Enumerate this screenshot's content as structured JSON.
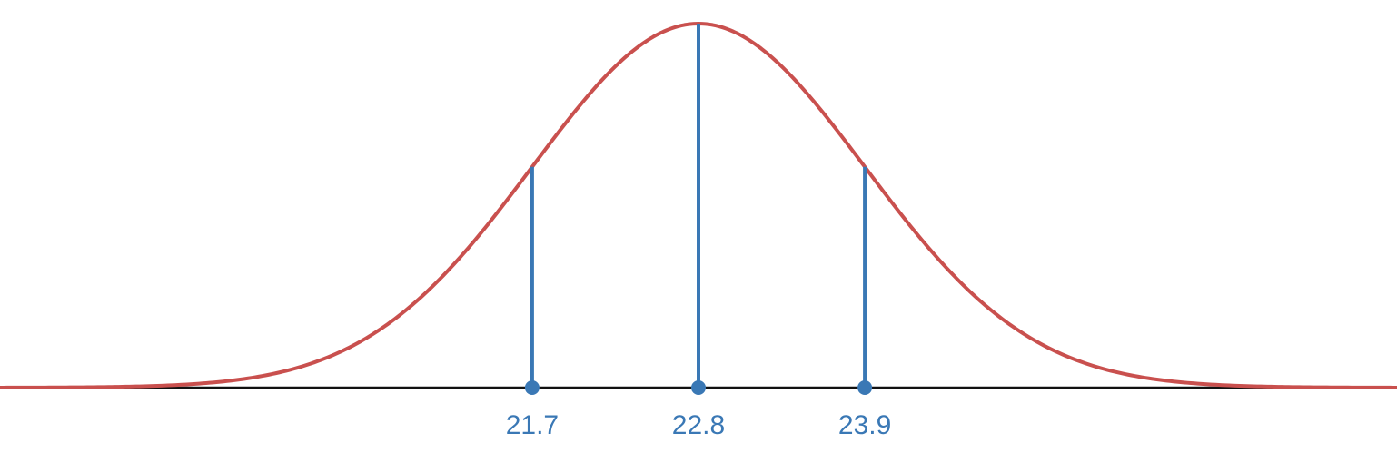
{
  "chart_data": {
    "type": "line",
    "title": "",
    "xlabel": "",
    "ylabel": "",
    "distribution": "normal",
    "mean": 22.8,
    "sd": 1.1,
    "xlim": [
      18.18,
      27.42
    ],
    "grid": false,
    "series": [
      {
        "kind": "normal-curve",
        "mean": 22.8,
        "sd": 1.1
      }
    ],
    "markers": [
      {
        "x": 21.7,
        "label": "21.7"
      },
      {
        "x": 22.8,
        "label": "22.8"
      },
      {
        "x": 23.9,
        "label": "23.9"
      }
    ]
  },
  "colors": {
    "curve": "#c9504e",
    "markers": "#3a78b5",
    "axis": "#111111",
    "background": "#ffffff"
  }
}
